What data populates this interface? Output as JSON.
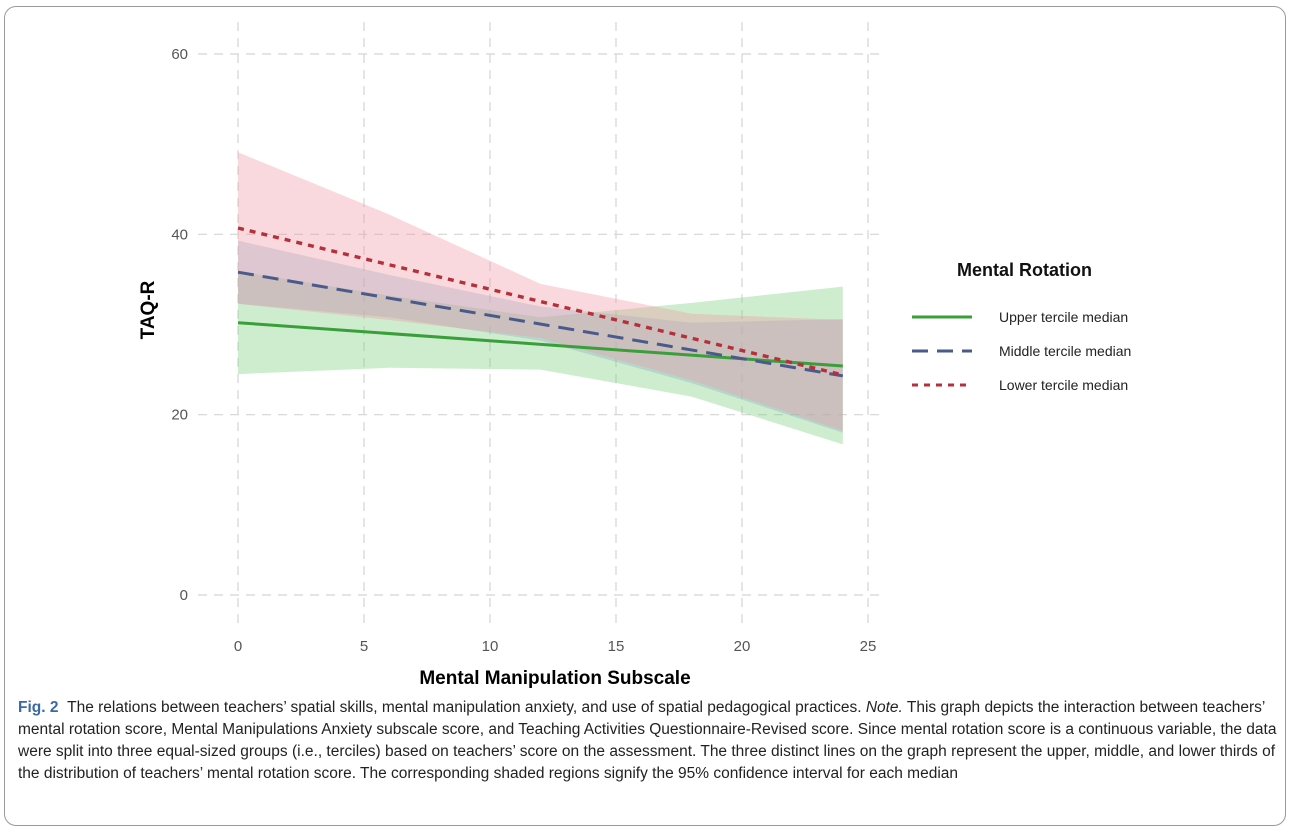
{
  "caption": {
    "label": "Fig. 2",
    "text_before_note": "The relations between teachers’ spatial skills, mental manipulation anxiety, and use of spatial pedagogical practices. ",
    "note_label": "Note.",
    "text_after_note": " This graph depicts the interaction between teachers’ mental rotation score, Mental Manipulations Anxiety subscale score, and Teaching Activities Questionnaire-Revised score. Since mental rotation score is a continuous variable, the data were split into three equal-sized groups (i.e., terciles) based on teachers’ score on the assessment. The three distinct lines on the graph represent the upper, middle, and lower thirds of the distribution of teachers’ mental rotation score. The corresponding shaded regions signify the 95% confidence interval for each median"
  },
  "chart_data": {
    "type": "line",
    "title": "",
    "xlabel": "Mental Manipulation Subscale",
    "ylabel": "TAQ-R",
    "xlim": [
      0,
      25
    ],
    "ylim": [
      0,
      60
    ],
    "x_ticks": [
      "0",
      "5",
      "10",
      "15",
      "20",
      "25"
    ],
    "y_ticks": [
      "0",
      "20",
      "40",
      "60"
    ],
    "grid": true,
    "legend": {
      "title": "Mental Rotation",
      "placement": "right"
    },
    "series": [
      {
        "name": "Upper tercile median",
        "color": "#3a9e3a",
        "band_color": "#7fcf7f",
        "line_style": "solid",
        "x": [
          0,
          24
        ],
        "y": [
          30.2,
          25.4
        ],
        "ci_x": [
          0,
          6,
          12,
          18,
          24
        ],
        "ci_lower": [
          24.5,
          25.2,
          25.0,
          22.0,
          16.7
        ],
        "ci_upper": [
          35.9,
          33.2,
          30.8,
          32.4,
          34.2
        ]
      },
      {
        "name": "Middle tercile median",
        "color": "#4a5a8a",
        "band_color": "#8fb4c8",
        "line_style": "dashed",
        "x": [
          0,
          24
        ],
        "y": [
          35.8,
          24.3
        ],
        "ci_x": [
          0,
          6,
          12,
          18,
          24
        ],
        "ci_lower": [
          32.3,
          30.8,
          28.2,
          23.5,
          18.0
        ],
        "ci_upper": [
          39.3,
          35.5,
          32.0,
          30.2,
          30.6
        ]
      },
      {
        "name": "Lower tercile median",
        "color": "#b5303a",
        "band_color": "#f09aa6",
        "line_style": "dotted",
        "x": [
          0,
          24
        ],
        "y": [
          40.7,
          24.4
        ],
        "ci_x": [
          0,
          6,
          12,
          18,
          24
        ],
        "ci_lower": [
          32.3,
          30.5,
          28.5,
          23.8,
          18.2
        ],
        "ci_upper": [
          49.1,
          42.2,
          34.5,
          31.2,
          30.5
        ]
      }
    ]
  }
}
